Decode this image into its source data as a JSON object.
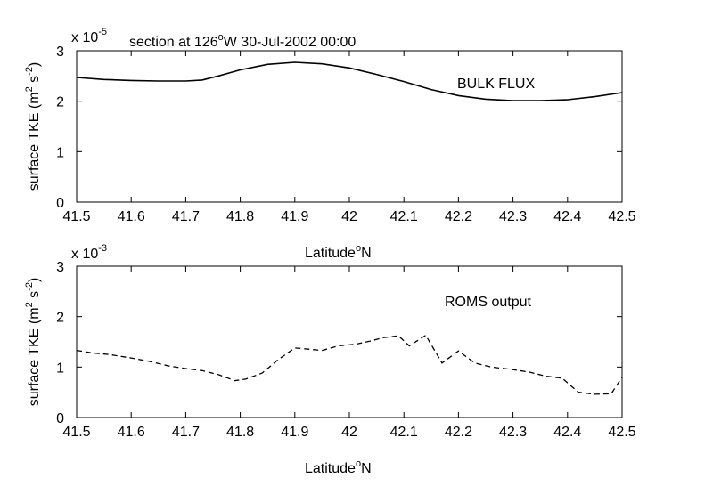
{
  "chart_data": [
    {
      "type": "line",
      "title": "section at 126°W 30-Jul-2002 00:00",
      "title_parts": {
        "prefix": "section at 126",
        "sup": "o",
        "suffix": "W 30-Jul-2002 00:00"
      },
      "scale_factor": {
        "base": "x 10",
        "exponent": "-5"
      },
      "annotation": "BULK FLUX",
      "xlabel": {
        "base": "Latitude",
        "sup": "o",
        "suffix": "N"
      },
      "ylabel": {
        "p1": "surface TKE (m",
        "s1": "2",
        "p2": " s",
        "s2": "-2",
        "p3": ")"
      },
      "xlim": [
        41.5,
        42.5
      ],
      "ylim": [
        0,
        3
      ],
      "x_ticks": [
        "41.5",
        "41.6",
        "41.7",
        "41.8",
        "41.9",
        "42",
        "42.1",
        "42.2",
        "42.3",
        "42.4",
        "42.5"
      ],
      "y_ticks": [
        "0",
        "1",
        "2",
        "3"
      ],
      "grid": false,
      "line_style": "solid",
      "series": [
        {
          "x": [
            41.5,
            41.55,
            41.6,
            41.65,
            41.7,
            41.73,
            41.76,
            41.8,
            41.85,
            41.9,
            41.95,
            42.0,
            42.05,
            42.1,
            42.15,
            42.2,
            42.25,
            42.3,
            42.35,
            42.4,
            42.45,
            42.5
          ],
          "y": [
            2.47,
            2.43,
            2.41,
            2.4,
            2.4,
            2.42,
            2.5,
            2.62,
            2.73,
            2.77,
            2.74,
            2.66,
            2.53,
            2.39,
            2.23,
            2.11,
            2.04,
            2.01,
            2.01,
            2.03,
            2.09,
            2.17
          ]
        }
      ]
    },
    {
      "type": "line",
      "scale_factor": {
        "base": "x 10",
        "exponent": "-3"
      },
      "annotation": "ROMS output",
      "xlabel": {
        "base": "Latitude",
        "sup": "o",
        "suffix": "N"
      },
      "ylabel": {
        "p1": "surface TKE (m",
        "s1": "2",
        "p2": " s",
        "s2": "-2",
        "p3": ")"
      },
      "xlim": [
        41.5,
        42.5
      ],
      "ylim": [
        0,
        3
      ],
      "x_ticks": [
        "41.5",
        "41.6",
        "41.7",
        "41.8",
        "41.9",
        "42",
        "42.1",
        "42.2",
        "42.3",
        "42.4",
        "42.5"
      ],
      "y_ticks": [
        "0",
        "1",
        "2",
        "3"
      ],
      "grid": false,
      "line_style": "dashed",
      "series": [
        {
          "x": [
            41.5,
            41.53,
            41.56,
            41.6,
            41.63,
            41.67,
            41.7,
            41.73,
            41.76,
            41.79,
            41.81,
            41.84,
            41.87,
            41.9,
            41.93,
            41.95,
            41.98,
            42.01,
            42.04,
            42.06,
            42.09,
            42.11,
            42.14,
            42.17,
            42.2,
            42.23,
            42.26,
            42.3,
            42.33,
            42.36,
            42.39,
            42.42,
            42.45,
            42.48,
            42.5
          ],
          "y": [
            1.33,
            1.28,
            1.25,
            1.18,
            1.12,
            1.02,
            0.97,
            0.93,
            0.85,
            0.73,
            0.76,
            0.88,
            1.15,
            1.38,
            1.35,
            1.33,
            1.42,
            1.45,
            1.52,
            1.58,
            1.62,
            1.42,
            1.63,
            1.08,
            1.32,
            1.08,
            1.0,
            0.95,
            0.9,
            0.82,
            0.78,
            0.5,
            0.46,
            0.47,
            0.8
          ]
        }
      ]
    }
  ]
}
